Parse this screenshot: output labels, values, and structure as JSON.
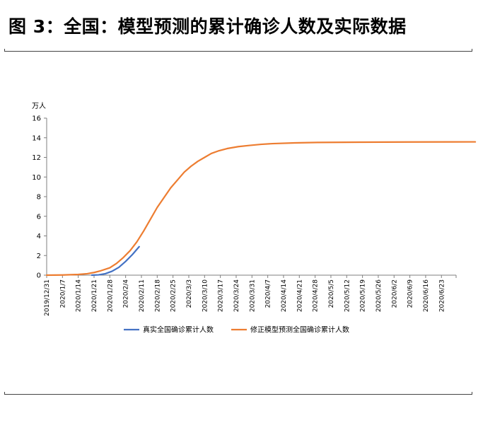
{
  "title": "图 3：全国：模型预测的累计确诊人数及实际数据",
  "chart_data": {
    "type": "line",
    "ylabel": "万人",
    "ylim": [
      0,
      16
    ],
    "yticks": [
      0,
      2,
      4,
      6,
      8,
      10,
      12,
      14,
      16
    ],
    "categories": [
      "2019/12/31",
      "2020/1/7",
      "2020/1/14",
      "2020/1/21",
      "2020/1/28",
      "2020/2/4",
      "2020/2/11",
      "2020/2/18",
      "2020/2/25",
      "2020/3/3",
      "2020/3/10",
      "2020/3/17",
      "2020/3/24",
      "2020/3/31",
      "2020/4/7",
      "2020/4/14",
      "2020/4/21",
      "2020/4/28",
      "2020/5/5",
      "2020/5/12",
      "2020/5/19",
      "2020/5/26",
      "2020/6/2",
      "2020/6/9",
      "2020/6/16",
      "2020/6/23"
    ],
    "x_end_offset_days": 6.5,
    "grid": false,
    "legend_position": "bottom",
    "series": [
      {
        "name": "真实全国确诊累计人数",
        "color": "#4472C4",
        "points": [
          [
            20,
            0.0
          ],
          [
            23,
            0.03
          ],
          [
            26,
            0.15
          ],
          [
            29,
            0.4
          ],
          [
            32,
            0.8
          ],
          [
            35,
            1.4
          ],
          [
            38,
            2.1
          ],
          [
            41,
            2.9
          ]
        ]
      },
      {
        "name": "修正模型预测全国确诊累计人数",
        "color": "#ED7D31",
        "points": [
          [
            0,
            0.0
          ],
          [
            7,
            0.02
          ],
          [
            14,
            0.07
          ],
          [
            18,
            0.15
          ],
          [
            21,
            0.27
          ],
          [
            24,
            0.45
          ],
          [
            28,
            0.75
          ],
          [
            31,
            1.2
          ],
          [
            34,
            1.8
          ],
          [
            37,
            2.5
          ],
          [
            40,
            3.4
          ],
          [
            43,
            4.5
          ],
          [
            46,
            5.7
          ],
          [
            49,
            6.9
          ],
          [
            52,
            7.9
          ],
          [
            55,
            8.9
          ],
          [
            58,
            9.7
          ],
          [
            61,
            10.5
          ],
          [
            64,
            11.1
          ],
          [
            67,
            11.6
          ],
          [
            70,
            12.0
          ],
          [
            73,
            12.4
          ],
          [
            76,
            12.65
          ],
          [
            80,
            12.9
          ],
          [
            85,
            13.1
          ],
          [
            90,
            13.22
          ],
          [
            95,
            13.33
          ],
          [
            100,
            13.4
          ],
          [
            110,
            13.48
          ],
          [
            120,
            13.52
          ],
          [
            140,
            13.55
          ],
          [
            160,
            13.57
          ],
          [
            190,
            13.58
          ]
        ]
      }
    ]
  }
}
